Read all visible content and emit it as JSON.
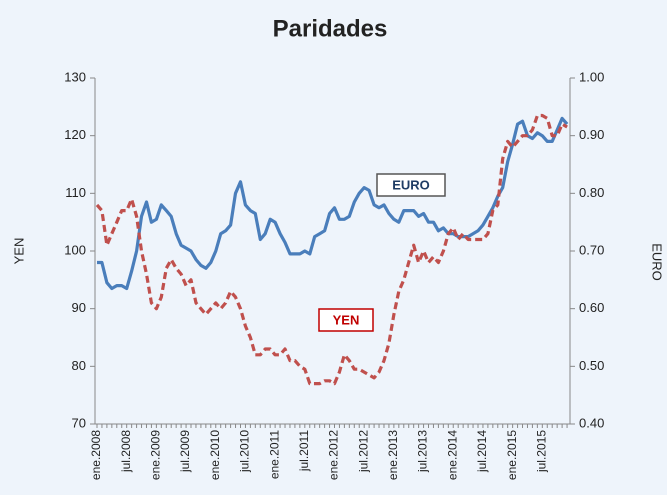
{
  "chart_data": {
    "type": "line",
    "title": "Paridades",
    "y_label": "YEN",
    "y2_label": "EURO",
    "categories": [
      "ene.2008",
      null,
      null,
      null,
      null,
      null,
      "jul.2008",
      null,
      null,
      null,
      null,
      null,
      "ene.2009",
      null,
      null,
      null,
      null,
      null,
      "jul.2009",
      null,
      null,
      null,
      null,
      null,
      "ene.2010",
      null,
      null,
      null,
      null,
      null,
      "jul.2010",
      null,
      null,
      null,
      null,
      null,
      "ene.2011",
      null,
      null,
      null,
      null,
      null,
      "jul.2011",
      null,
      null,
      null,
      null,
      null,
      "ene.2012",
      null,
      null,
      null,
      null,
      null,
      "jul.2012",
      null,
      null,
      null,
      null,
      null,
      "ene.2013",
      null,
      null,
      null,
      null,
      null,
      "jul.2013",
      null,
      null,
      null,
      null,
      null,
      "ene.2014",
      null,
      null,
      null,
      null,
      null,
      "jul.2014",
      null,
      null,
      null,
      null,
      null,
      "ene.2015",
      null,
      null,
      null,
      null,
      null,
      "jul.2015",
      null,
      null,
      null,
      null,
      null
    ],
    "series": [
      {
        "name": "EURO",
        "color": "#4a7ebb",
        "axis": "y2",
        "dashed": false,
        "values": [
          0.68,
          0.68,
          0.645,
          0.635,
          0.64,
          0.64,
          0.635,
          0.665,
          0.7,
          0.76,
          0.785,
          0.75,
          0.755,
          0.78,
          0.77,
          0.76,
          0.73,
          0.71,
          0.705,
          0.7,
          0.685,
          0.675,
          0.67,
          0.68,
          0.7,
          0.73,
          0.735,
          0.745,
          0.8,
          0.82,
          0.78,
          0.77,
          0.765,
          0.72,
          0.73,
          0.755,
          0.75,
          0.73,
          0.715,
          0.695,
          0.695,
          0.695,
          0.7,
          0.695,
          0.725,
          0.73,
          0.735,
          0.765,
          0.775,
          0.755,
          0.755,
          0.76,
          0.785,
          0.8,
          0.81,
          0.805,
          0.78,
          0.775,
          0.78,
          0.765,
          0.755,
          0.75,
          0.77,
          0.77,
          0.77,
          0.76,
          0.765,
          0.75,
          0.75,
          0.735,
          0.74,
          0.73,
          0.73,
          0.725,
          0.725,
          0.725,
          0.73,
          0.735,
          0.745,
          0.76,
          0.775,
          0.795,
          0.81,
          0.855,
          0.885,
          0.92,
          0.925,
          0.9,
          0.895,
          0.905,
          0.9,
          0.89,
          0.89,
          0.91,
          0.93,
          0.92
        ]
      },
      {
        "name": "YEN",
        "color": "#c0504d",
        "axis": "y",
        "dashed": true,
        "values": [
          108,
          107,
          101,
          103,
          105,
          107,
          107,
          109,
          106,
          100,
          96,
          91,
          90,
          92,
          97,
          98.5,
          97,
          96,
          94,
          95,
          91,
          90,
          89,
          90,
          91,
          90,
          91,
          93,
          92,
          90,
          87,
          85,
          82,
          82,
          83,
          83,
          82,
          82,
          83,
          81,
          81,
          80,
          79.5,
          77,
          77,
          77,
          77.5,
          77.5,
          77,
          79,
          82,
          81,
          79.5,
          79.5,
          79,
          78.5,
          78,
          79,
          81,
          84,
          89,
          93,
          95,
          98,
          101,
          98,
          100,
          98,
          99,
          98,
          100,
          103,
          104,
          102,
          103,
          102,
          102,
          102,
          102,
          103,
          107,
          108,
          116,
          119,
          118,
          119,
          120,
          120,
          121,
          123.5,
          123.5,
          123,
          120,
          120,
          122,
          121.5
        ]
      }
    ],
    "ylim": [
      70,
      130
    ],
    "yticks": [
      70,
      80,
      90,
      100,
      110,
      120,
      130
    ],
    "y2lim": [
      0.4,
      1.0
    ],
    "y2ticks": [
      {
        "value": 0.4,
        "label": "0.40"
      },
      {
        "value": 0.5,
        "label": "0.50"
      },
      {
        "value": 0.6,
        "label": "0.60"
      },
      {
        "value": 0.7,
        "label": "0.70"
      },
      {
        "value": 0.8,
        "label": "0.80"
      },
      {
        "value": 0.9,
        "label": "0.90"
      },
      {
        "value": 1.0,
        "label": "1.00"
      }
    ],
    "grid": false
  }
}
